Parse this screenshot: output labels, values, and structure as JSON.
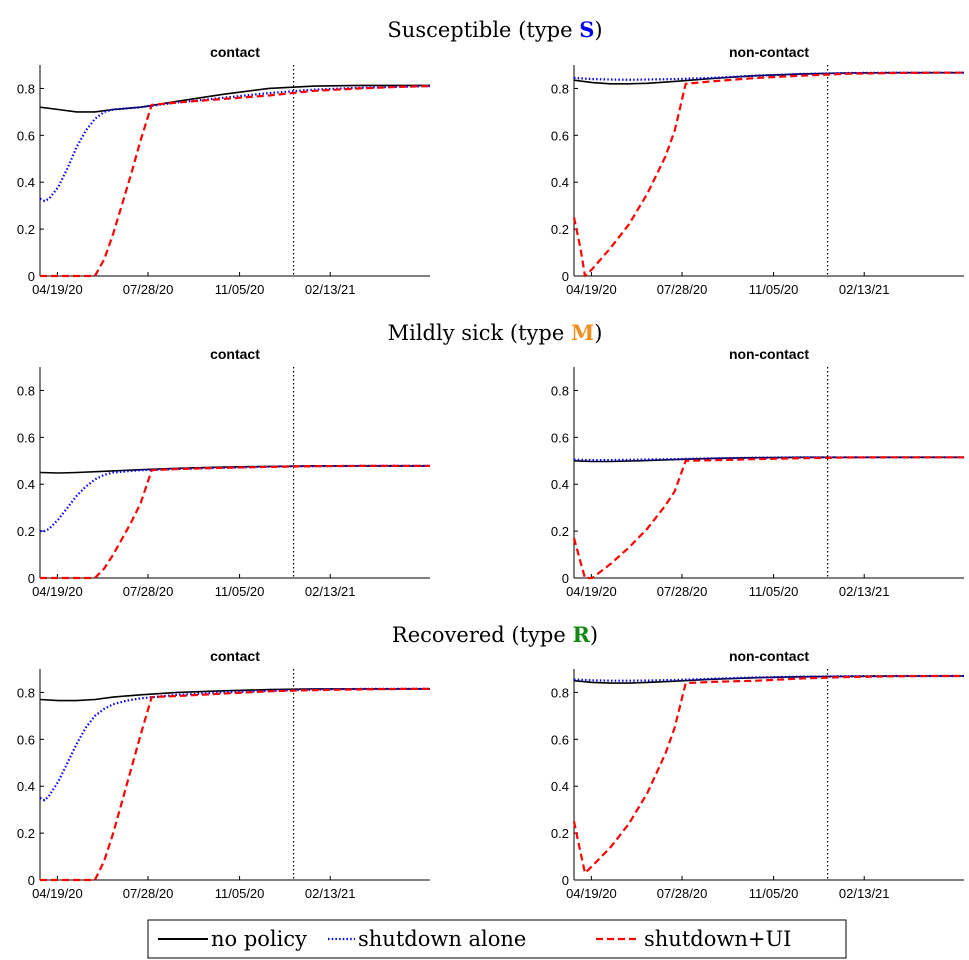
{
  "colors": {
    "no_policy": "#000000",
    "shutdown_alone": "#0000ff",
    "shutdown_ui": "#ff0000",
    "type_S": "#0000ee",
    "type_M": "#f28e1c",
    "type_R": "#128a12"
  },
  "legend": {
    "items": [
      {
        "label": "no policy",
        "style": "solid",
        "color_key": "no_policy"
      },
      {
        "label": "shutdown alone",
        "style": "dotted",
        "color_key": "shutdown_alone"
      },
      {
        "label": "shutdown+UI",
        "style": "dashed",
        "color_key": "shutdown_ui"
      }
    ]
  },
  "rows": [
    {
      "title_prefix": "Susceptible (type ",
      "letter": "S",
      "title_suffix": ")",
      "color_key": "type_S"
    },
    {
      "title_prefix": "Mildly sick (type ",
      "letter": "M",
      "title_suffix": ")",
      "color_key": "type_M"
    },
    {
      "title_prefix": "Recovered (type ",
      "letter": "R",
      "title_suffix": ")",
      "color_key": "type_R"
    }
  ],
  "chart_data": [
    {
      "type": "line",
      "title": "contact",
      "x_tick_labels": [
        "04/19/20",
        "07/28/20",
        "11/05/20",
        "02/13/21"
      ],
      "x_ticks": [
        19,
        118,
        218,
        317
      ],
      "xlim": [
        0,
        426
      ],
      "ylim": [
        0,
        0.9
      ],
      "y_ticks": [
        0,
        0.2,
        0.4,
        0.6,
        0.8
      ],
      "y_tick_labels": [
        "0",
        "0.2",
        "0.4",
        "0.6",
        "0.8"
      ],
      "vline_x": 277,
      "series": [
        {
          "name": "no policy",
          "x": [
            0,
            20,
            40,
            60,
            80,
            110,
            150,
            200,
            250,
            300,
            350,
            400,
            426
          ],
          "y": [
            0.72,
            0.71,
            0.7,
            0.7,
            0.71,
            0.72,
            0.745,
            0.775,
            0.8,
            0.81,
            0.813,
            0.813,
            0.813
          ]
        },
        {
          "name": "shutdown alone",
          "x": [
            0,
            5,
            10,
            20,
            30,
            40,
            50,
            60,
            70,
            80,
            95,
            110,
            150,
            200,
            250,
            300,
            350,
            400,
            426
          ],
          "y": [
            0.33,
            0.32,
            0.33,
            0.38,
            0.46,
            0.55,
            0.62,
            0.67,
            0.7,
            0.71,
            0.715,
            0.72,
            0.74,
            0.76,
            0.78,
            0.795,
            0.803,
            0.808,
            0.81
          ]
        },
        {
          "name": "shutdown+UI",
          "x": [
            0,
            30,
            60,
            70,
            80,
            90,
            100,
            110,
            122,
            150,
            200,
            250,
            300,
            350,
            400,
            426
          ],
          "y": [
            0.0,
            0.0,
            0.0,
            0.07,
            0.18,
            0.31,
            0.44,
            0.58,
            0.73,
            0.74,
            0.755,
            0.77,
            0.79,
            0.8,
            0.808,
            0.81
          ]
        }
      ]
    },
    {
      "type": "line",
      "title": "non-contact",
      "x_tick_labels": [
        "04/19/20",
        "07/28/20",
        "11/05/20",
        "02/13/21"
      ],
      "x_ticks": [
        19,
        118,
        218,
        317
      ],
      "xlim": [
        0,
        426
      ],
      "ylim": [
        0,
        0.9
      ],
      "y_ticks": [
        0,
        0.2,
        0.4,
        0.6,
        0.8
      ],
      "y_tick_labels": [
        "0",
        "0.2",
        "0.4",
        "0.6",
        "0.8"
      ],
      "vline_x": 277,
      "series": [
        {
          "name": "no policy",
          "x": [
            0,
            20,
            40,
            60,
            80,
            110,
            150,
            200,
            250,
            300,
            350,
            400,
            426
          ],
          "y": [
            0.835,
            0.825,
            0.82,
            0.82,
            0.822,
            0.83,
            0.842,
            0.855,
            0.862,
            0.866,
            0.867,
            0.867,
            0.867
          ]
        },
        {
          "name": "shutdown alone",
          "x": [
            0,
            20,
            40,
            60,
            80,
            110,
            150,
            200,
            250,
            300,
            350,
            400,
            426
          ],
          "y": [
            0.845,
            0.84,
            0.838,
            0.837,
            0.838,
            0.84,
            0.845,
            0.855,
            0.862,
            0.866,
            0.867,
            0.867,
            0.867
          ]
        },
        {
          "name": "shutdown+UI",
          "x": [
            0,
            7,
            12,
            20,
            40,
            60,
            80,
            100,
            110,
            122,
            150,
            200,
            250,
            300,
            350,
            400,
            426
          ],
          "y": [
            0.25,
            0.12,
            0.0,
            0.03,
            0.12,
            0.22,
            0.35,
            0.51,
            0.62,
            0.82,
            0.83,
            0.845,
            0.855,
            0.863,
            0.866,
            0.867,
            0.867
          ]
        }
      ]
    },
    {
      "type": "line",
      "title": "contact",
      "x_tick_labels": [
        "04/19/20",
        "07/28/20",
        "11/05/20",
        "02/13/21"
      ],
      "x_ticks": [
        19,
        118,
        218,
        317
      ],
      "xlim": [
        0,
        426
      ],
      "ylim": [
        0,
        0.9
      ],
      "y_ticks": [
        0,
        0.2,
        0.4,
        0.6,
        0.8
      ],
      "y_tick_labels": [
        "0",
        "0.2",
        "0.4",
        "0.6",
        "0.8"
      ],
      "vline_x": 277,
      "series": [
        {
          "name": "no policy",
          "x": [
            0,
            20,
            40,
            70,
            110,
            150,
            200,
            250,
            300,
            350,
            400,
            426
          ],
          "y": [
            0.45,
            0.448,
            0.45,
            0.455,
            0.462,
            0.468,
            0.473,
            0.476,
            0.478,
            0.478,
            0.478,
            0.478
          ]
        },
        {
          "name": "shutdown alone",
          "x": [
            0,
            5,
            10,
            20,
            30,
            40,
            50,
            60,
            70,
            80,
            95,
            110,
            150,
            200,
            250,
            300,
            350,
            400,
            426
          ],
          "y": [
            0.2,
            0.2,
            0.21,
            0.25,
            0.3,
            0.35,
            0.39,
            0.42,
            0.44,
            0.45,
            0.455,
            0.46,
            0.465,
            0.47,
            0.475,
            0.477,
            0.478,
            0.478,
            0.478
          ]
        },
        {
          "name": "shutdown+UI",
          "x": [
            0,
            30,
            60,
            70,
            80,
            90,
            100,
            110,
            122,
            150,
            200,
            250,
            300,
            350,
            400,
            426
          ],
          "y": [
            0.0,
            0.0,
            0.0,
            0.04,
            0.1,
            0.17,
            0.24,
            0.32,
            0.46,
            0.465,
            0.47,
            0.474,
            0.477,
            0.478,
            0.478,
            0.478
          ]
        }
      ]
    },
    {
      "type": "line",
      "title": "non-contact",
      "x_tick_labels": [
        "04/19/20",
        "07/28/20",
        "11/05/20",
        "02/13/21"
      ],
      "x_ticks": [
        19,
        118,
        218,
        317
      ],
      "xlim": [
        0,
        426
      ],
      "ylim": [
        0,
        0.9
      ],
      "y_ticks": [
        0,
        0.2,
        0.4,
        0.6,
        0.8
      ],
      "y_tick_labels": [
        "0",
        "0.2",
        "0.4",
        "0.6",
        "0.8"
      ],
      "vline_x": 277,
      "series": [
        {
          "name": "no policy",
          "x": [
            0,
            20,
            40,
            70,
            110,
            150,
            200,
            250,
            300,
            350,
            400,
            426
          ],
          "y": [
            0.5,
            0.497,
            0.497,
            0.5,
            0.505,
            0.51,
            0.513,
            0.515,
            0.515,
            0.515,
            0.515,
            0.515
          ]
        },
        {
          "name": "shutdown alone",
          "x": [
            0,
            20,
            40,
            70,
            110,
            150,
            200,
            250,
            300,
            350,
            400,
            426
          ],
          "y": [
            0.505,
            0.503,
            0.503,
            0.505,
            0.507,
            0.51,
            0.513,
            0.515,
            0.515,
            0.515,
            0.515,
            0.515
          ]
        },
        {
          "name": "shutdown+UI",
          "x": [
            0,
            7,
            12,
            20,
            40,
            60,
            80,
            100,
            110,
            122,
            150,
            200,
            250,
            300,
            350,
            400,
            426
          ],
          "y": [
            0.17,
            0.07,
            0.0,
            0.0,
            0.06,
            0.13,
            0.21,
            0.31,
            0.37,
            0.5,
            0.502,
            0.507,
            0.511,
            0.514,
            0.515,
            0.515,
            0.515
          ]
        }
      ]
    },
    {
      "type": "line",
      "title": "contact",
      "x_tick_labels": [
        "04/19/20",
        "07/28/20",
        "11/05/20",
        "02/13/21"
      ],
      "x_ticks": [
        19,
        118,
        218,
        317
      ],
      "xlim": [
        0,
        426
      ],
      "ylim": [
        0,
        0.9
      ],
      "y_ticks": [
        0,
        0.2,
        0.4,
        0.6,
        0.8
      ],
      "y_tick_labels": [
        "0",
        "0.2",
        "0.4",
        "0.6",
        "0.8"
      ],
      "vline_x": 277,
      "series": [
        {
          "name": "no policy",
          "x": [
            0,
            20,
            40,
            60,
            80,
            110,
            150,
            200,
            250,
            300,
            350,
            400,
            426
          ],
          "y": [
            0.77,
            0.765,
            0.765,
            0.77,
            0.78,
            0.79,
            0.8,
            0.807,
            0.812,
            0.815,
            0.815,
            0.815,
            0.815
          ]
        },
        {
          "name": "shutdown alone",
          "x": [
            0,
            5,
            10,
            20,
            30,
            40,
            50,
            60,
            70,
            80,
            95,
            110,
            150,
            200,
            250,
            300,
            350,
            400,
            426
          ],
          "y": [
            0.35,
            0.34,
            0.36,
            0.42,
            0.5,
            0.58,
            0.65,
            0.7,
            0.73,
            0.75,
            0.765,
            0.775,
            0.79,
            0.8,
            0.807,
            0.812,
            0.815,
            0.815,
            0.815
          ]
        },
        {
          "name": "shutdown+UI",
          "x": [
            0,
            30,
            60,
            70,
            80,
            90,
            100,
            110,
            122,
            150,
            200,
            250,
            300,
            350,
            400,
            426
          ],
          "y": [
            0.0,
            0.0,
            0.0,
            0.08,
            0.2,
            0.34,
            0.48,
            0.62,
            0.78,
            0.785,
            0.795,
            0.805,
            0.81,
            0.813,
            0.815,
            0.815
          ]
        }
      ]
    },
    {
      "type": "line",
      "title": "non-contact",
      "x_tick_labels": [
        "04/19/20",
        "07/28/20",
        "11/05/20",
        "02/13/21"
      ],
      "x_ticks": [
        19,
        118,
        218,
        317
      ],
      "xlim": [
        0,
        426
      ],
      "ylim": [
        0,
        0.9
      ],
      "y_ticks": [
        0,
        0.2,
        0.4,
        0.6,
        0.8
      ],
      "y_tick_labels": [
        "0",
        "0.2",
        "0.4",
        "0.6",
        "0.8"
      ],
      "vline_x": 277,
      "series": [
        {
          "name": "no policy",
          "x": [
            0,
            20,
            40,
            60,
            80,
            110,
            150,
            200,
            250,
            300,
            350,
            400,
            426
          ],
          "y": [
            0.85,
            0.843,
            0.84,
            0.84,
            0.843,
            0.848,
            0.856,
            0.863,
            0.867,
            0.869,
            0.87,
            0.87,
            0.87
          ]
        },
        {
          "name": "shutdown alone",
          "x": [
            0,
            20,
            40,
            60,
            80,
            110,
            150,
            200,
            250,
            300,
            350,
            400,
            426
          ],
          "y": [
            0.855,
            0.852,
            0.85,
            0.85,
            0.851,
            0.853,
            0.858,
            0.864,
            0.867,
            0.869,
            0.87,
            0.87,
            0.87
          ]
        },
        {
          "name": "shutdown+UI",
          "x": [
            0,
            7,
            12,
            20,
            40,
            60,
            80,
            100,
            110,
            122,
            150,
            200,
            250,
            300,
            350,
            400,
            426
          ],
          "y": [
            0.25,
            0.12,
            0.03,
            0.06,
            0.14,
            0.24,
            0.37,
            0.54,
            0.65,
            0.84,
            0.845,
            0.85,
            0.86,
            0.866,
            0.869,
            0.87,
            0.87
          ]
        }
      ]
    }
  ]
}
